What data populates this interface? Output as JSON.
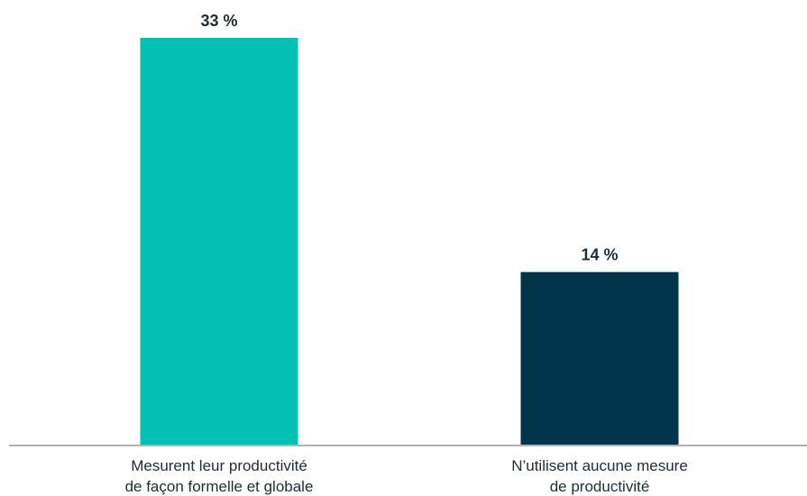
{
  "chart_data": {
    "type": "bar",
    "categories": [
      [
        "Mesurent leur productivité",
        "de façon formelle et globale"
      ],
      [
        "N’utilisent aucune mesure",
        "de productivité"
      ]
    ],
    "values": [
      33,
      14
    ],
    "value_labels": [
      "33 %",
      "14 %"
    ],
    "colors": [
      "#00c1b2",
      "#023549"
    ],
    "ylim": [
      0,
      33
    ],
    "grid": false,
    "title": "",
    "xlabel": "",
    "ylabel": ""
  }
}
